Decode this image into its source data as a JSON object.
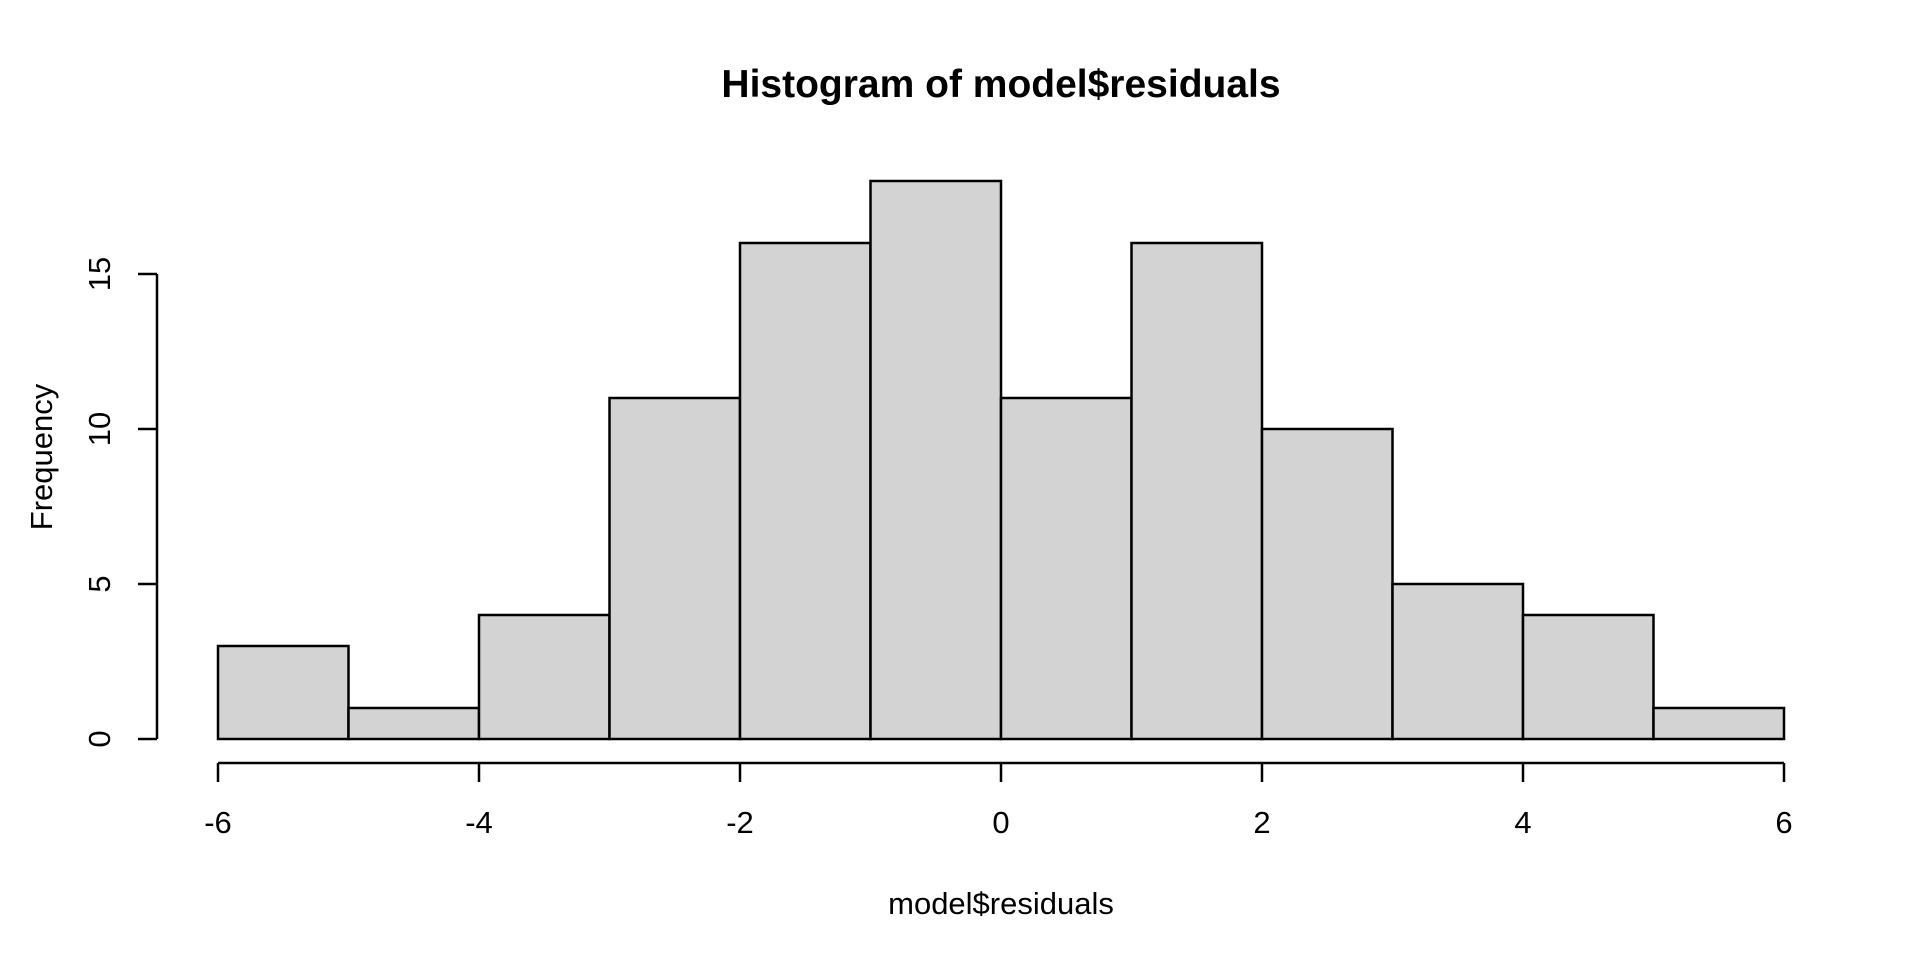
{
  "chart_data": {
    "type": "bar",
    "subtype": "histogram",
    "title": "Histogram of model$residuals",
    "xlabel": "model$residuals",
    "ylabel": "Frequency",
    "bin_edges": [
      -6,
      -5,
      -4,
      -3,
      -2,
      -1,
      0,
      1,
      2,
      3,
      4,
      5,
      6
    ],
    "counts": [
      3,
      1,
      4,
      11,
      16,
      18,
      11,
      16,
      10,
      5,
      4,
      1
    ],
    "x_ticks": [
      -6,
      -4,
      -2,
      0,
      2,
      4,
      6
    ],
    "y_ticks": [
      0,
      5,
      10,
      15
    ],
    "xlim": [
      -6,
      6
    ],
    "ylim": [
      0,
      18
    ],
    "grid": false,
    "legend": "none",
    "colors": {
      "bar_fill": "#D3D3D3",
      "bar_border": "#000000",
      "axis": "#000000",
      "text": "#000000",
      "background": "#FFFFFF"
    }
  }
}
